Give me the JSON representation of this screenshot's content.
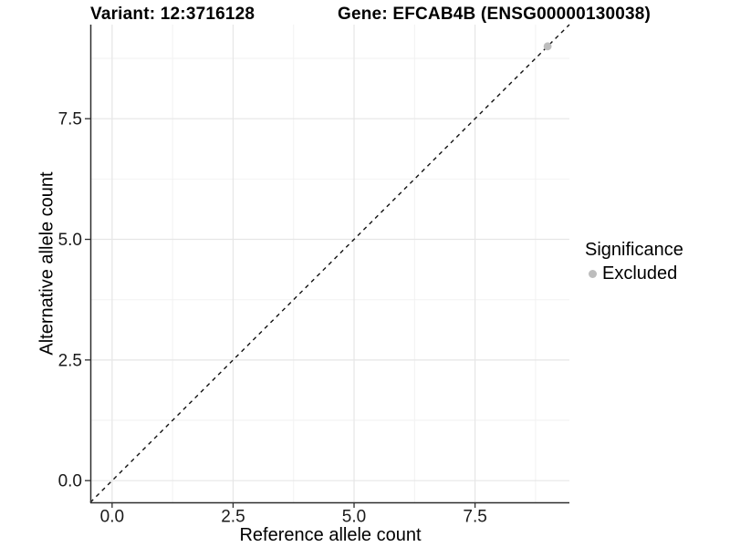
{
  "header": {
    "variant_title": "Variant: 12:3716128",
    "gene_title": "Gene: EFCAB4B (ENSG00000130038)"
  },
  "axes": {
    "x_label": "Reference allele count",
    "y_label": "Alternative allele count"
  },
  "legend": {
    "title": "Significance",
    "items": [
      {
        "label": "Excluded",
        "marker": "circle-icon",
        "color": "#bdbdbd"
      }
    ]
  },
  "colors": {
    "point": "#bdbdbd",
    "identity_line": "#111111",
    "axis_line": "#2e2e2e",
    "tick_text": "#1a1a1a",
    "grid_major": "#e6e6e6",
    "grid_minor": "#f2f2f2",
    "background": "#ffffff"
  },
  "chart_data": {
    "type": "scatter",
    "title": "Variant: 12:3716128   Gene: EFCAB4B (ENSG00000130038)",
    "xlabel": "Reference allele count",
    "ylabel": "Alternative allele count",
    "xlim": [
      -0.45,
      9.45
    ],
    "ylim": [
      -0.45,
      9.45
    ],
    "xticks": [
      0.0,
      2.5,
      5.0,
      7.5
    ],
    "yticks": [
      0.0,
      2.5,
      5.0,
      7.5
    ],
    "xtick_labels": [
      "0.0",
      "2.5",
      "5.0",
      "7.5"
    ],
    "ytick_labels": [
      "0.0",
      "2.5",
      "5.0",
      "7.5"
    ],
    "minor_tick_values": [
      1.25,
      3.75,
      6.25,
      8.75
    ],
    "grid": true,
    "legend_position": "right",
    "series": [
      {
        "name": "Excluded",
        "color": "#bdbdbd",
        "points": [
          {
            "x": 9,
            "y": 9
          }
        ]
      }
    ],
    "reference_line": {
      "kind": "identity",
      "equation": "y = x",
      "style": "dashed",
      "color": "#111111"
    }
  }
}
